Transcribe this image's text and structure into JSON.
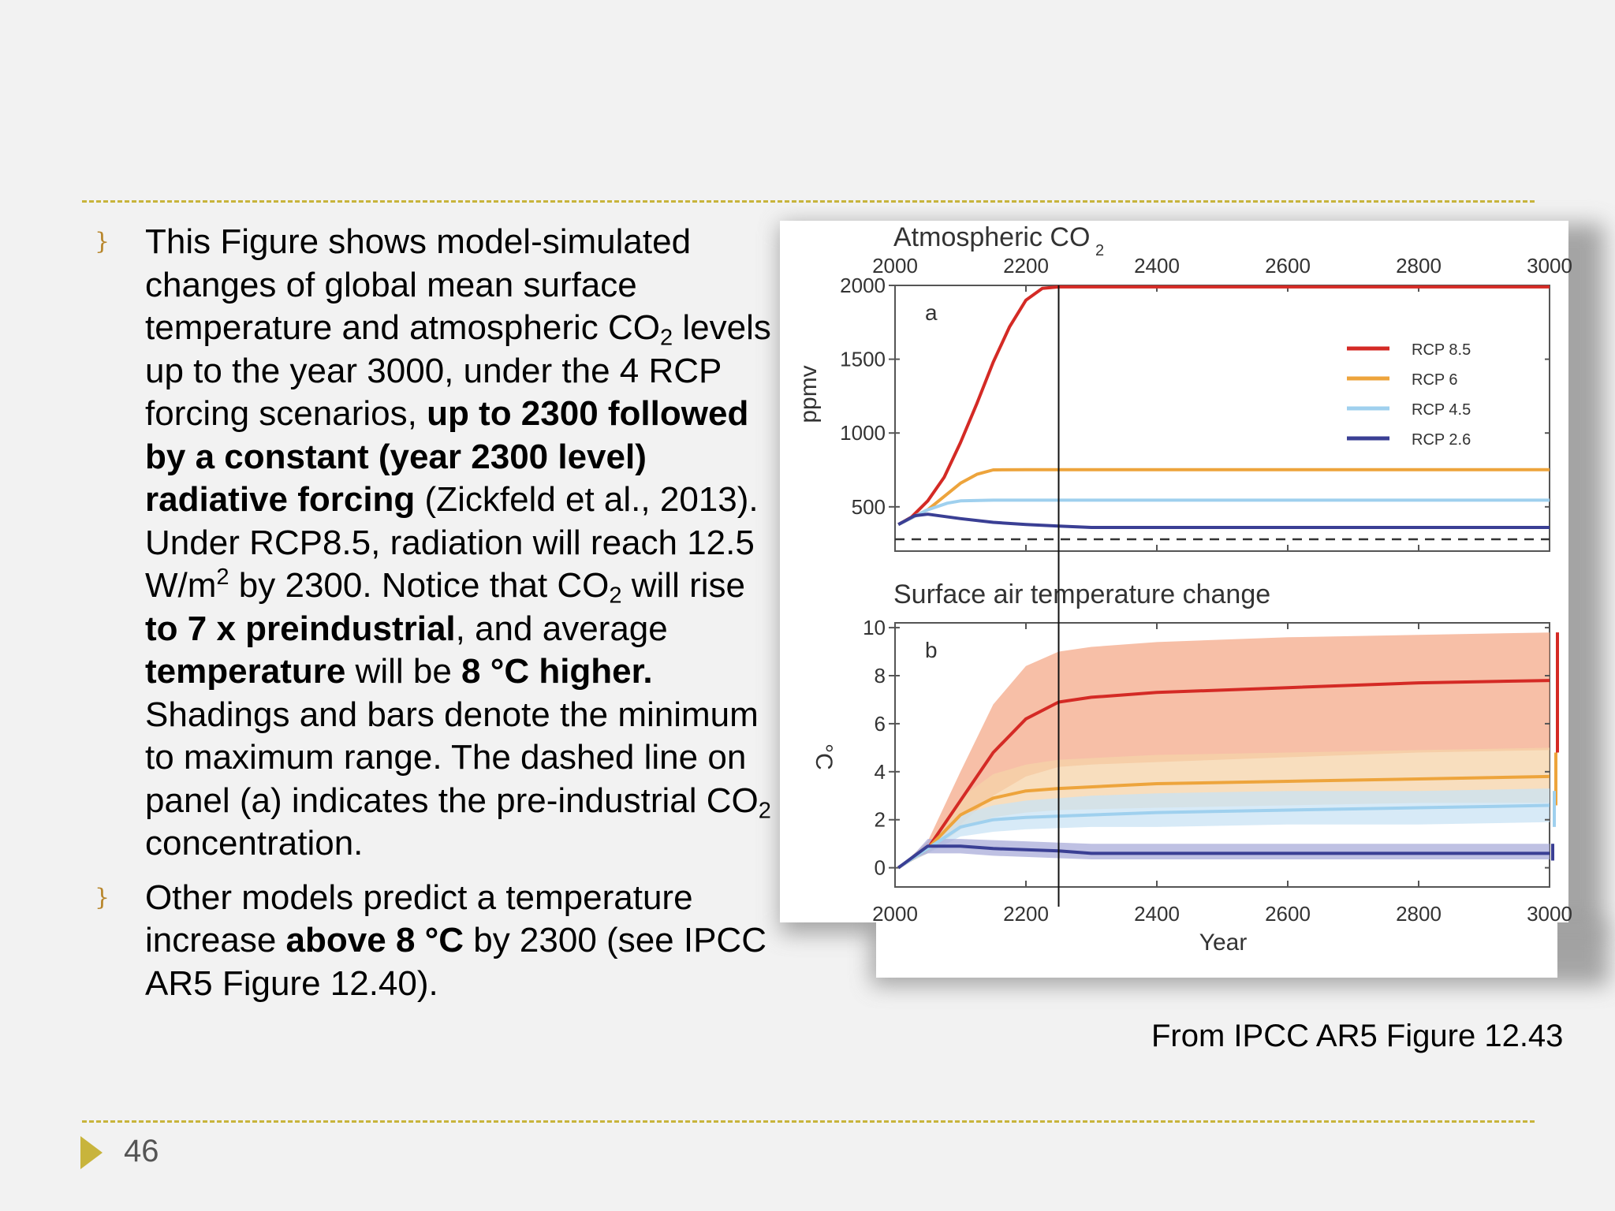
{
  "slide": {
    "page_number": "46",
    "caption": "From IPCC AR5 Figure 12.43",
    "bullets": [
      {
        "s1": "This Figure shows model-simulated changes of global mean surface temperature and atmospheric CO",
        "s2": "2",
        "s3": " levels up to the year 3000, under the 4 RCP forcing  scenarios, ",
        "s4": "up to 2300 followed by a constant (year 2300 level) radiative forcing",
        "s5": " (Zickfeld et al., 2013). Under RCP8.5, radiation will reach 12.5 W/m",
        "s6": "2",
        "s7": " by 2300. Notice that CO",
        "s8": "2",
        "s9": " will rise ",
        "s10": "to 7 x preindustrial",
        "s11": ", and average ",
        "s12": "temperature",
        "s13": "  will be ",
        "s14": "8 °C higher.",
        "s15": " Shadings and bars denote the minimum to maximum range. The dashed line on panel (a) indicates the pre-industrial CO",
        "s16": "2",
        "s17": " concentration."
      },
      {
        "s1": "Other models predict a temperature increase ",
        "s2": "above 8  °C",
        "s3": " by 2300 (see IPCC AR5 Figure 12.40)."
      }
    ]
  },
  "colors": {
    "accent": "#c8b43c",
    "bullet": "#b8862b",
    "rcp85": "#d42a25",
    "rcp6": "#eda43c",
    "rcp45": "#9fd0ee",
    "rcp26": "#3a3f94",
    "band85": "#f4a989",
    "band6": "#f6d3a8",
    "band45": "#c9e3f4",
    "band26": "#a9acd9"
  },
  "chart_data": [
    {
      "type": "line",
      "title": "Atmospheric CO",
      "title_sub": "2",
      "panel_label": "a",
      "ylabel": "ppmv",
      "xlim": [
        2000,
        3000
      ],
      "ylim": [
        200,
        2000
      ],
      "x_ticks": [
        2000,
        2200,
        2400,
        2600,
        2800,
        3000
      ],
      "x_tick_labels": [
        "2000",
        "2200",
        "2400",
        "2600",
        "2800",
        "3000"
      ],
      "y_ticks": [
        500,
        1000,
        1500,
        2000
      ],
      "y_tick_labels": [
        "500",
        "1000",
        "1500",
        "2000"
      ],
      "reference_line": {
        "x": 2250
      },
      "preindustrial_line": {
        "y": 280
      },
      "legend": {
        "position": "top-right",
        "entries": [
          "RCP 8.5",
          "RCP 6",
          "RCP 4.5",
          "RCP 2.6"
        ]
      },
      "series": [
        {
          "name": "RCP 8.5",
          "color_key": "rcp85",
          "x": [
            2005,
            2025,
            2050,
            2075,
            2100,
            2125,
            2150,
            2175,
            2200,
            2225,
            2250,
            2400,
            2600,
            2800,
            3000
          ],
          "y": [
            380,
            430,
            540,
            700,
            935,
            1200,
            1480,
            1720,
            1900,
            1980,
            1990,
            1990,
            1990,
            1990,
            1990
          ]
        },
        {
          "name": "RCP 6",
          "color_key": "rcp6",
          "x": [
            2005,
            2050,
            2100,
            2125,
            2150,
            2200,
            2250,
            3000
          ],
          "y": [
            380,
            480,
            660,
            720,
            750,
            752,
            752,
            752
          ]
        },
        {
          "name": "RCP 4.5",
          "color_key": "rcp45",
          "x": [
            2005,
            2050,
            2080,
            2100,
            2150,
            3000
          ],
          "y": [
            380,
            480,
            525,
            540,
            545,
            545
          ]
        },
        {
          "name": "RCP 2.6",
          "color_key": "rcp26",
          "x": [
            2005,
            2030,
            2050,
            2100,
            2150,
            2200,
            2250,
            2300,
            3000
          ],
          "y": [
            380,
            440,
            450,
            420,
            395,
            380,
            370,
            360,
            360
          ]
        }
      ]
    },
    {
      "type": "area",
      "title": "Surface air temperature change",
      "panel_label": "b",
      "xlabel": "Year",
      "ylabel": "°C",
      "xlim": [
        2000,
        3000
      ],
      "ylim": [
        -0.8,
        10.2
      ],
      "x_ticks": [
        2000,
        2200,
        2400,
        2600,
        2800,
        3000
      ],
      "x_tick_labels": [
        "2000",
        "2200",
        "2400",
        "2600",
        "2800",
        "3000"
      ],
      "y_ticks": [
        0,
        2,
        4,
        6,
        8,
        10
      ],
      "y_tick_labels": [
        "0",
        "2",
        "4",
        "6",
        "8",
        "10"
      ],
      "reference_line": {
        "x": 2250
      },
      "series": [
        {
          "name": "RCP 8.5",
          "color_key": "rcp85",
          "band_color_key": "band85",
          "x": [
            2005,
            2050,
            2100,
            2150,
            2200,
            2250,
            2300,
            2400,
            2600,
            2800,
            3000
          ],
          "y": [
            0.0,
            0.8,
            2.8,
            4.8,
            6.2,
            6.9,
            7.1,
            7.3,
            7.5,
            7.7,
            7.8
          ],
          "y_min": [
            0.0,
            0.6,
            1.8,
            3.0,
            3.8,
            4.2,
            4.3,
            4.4,
            4.6,
            4.8,
            4.9
          ],
          "y_max": [
            0.0,
            1.1,
            4.0,
            6.8,
            8.4,
            9.0,
            9.2,
            9.4,
            9.6,
            9.7,
            9.8
          ]
        },
        {
          "name": "RCP 6",
          "color_key": "rcp6",
          "band_color_key": "band6",
          "x": [
            2005,
            2050,
            2100,
            2150,
            2200,
            2250,
            2400,
            2600,
            2800,
            3000
          ],
          "y": [
            0.0,
            0.8,
            2.2,
            2.9,
            3.2,
            3.3,
            3.5,
            3.6,
            3.7,
            3.8
          ],
          "y_min": [
            0.0,
            0.6,
            1.6,
            2.1,
            2.3,
            2.4,
            2.5,
            2.6,
            2.7,
            2.7
          ],
          "y_max": [
            0.0,
            1.0,
            2.9,
            3.9,
            4.3,
            4.5,
            4.7,
            4.8,
            4.9,
            5.0
          ]
        },
        {
          "name": "RCP 4.5",
          "color_key": "rcp45",
          "band_color_key": "band45",
          "x": [
            2005,
            2050,
            2100,
            2150,
            2200,
            2300,
            2400,
            2600,
            2800,
            3000
          ],
          "y": [
            0.0,
            0.8,
            1.7,
            2.0,
            2.1,
            2.2,
            2.3,
            2.4,
            2.5,
            2.6
          ],
          "y_min": [
            0.0,
            0.6,
            1.3,
            1.5,
            1.6,
            1.7,
            1.7,
            1.8,
            1.8,
            1.9
          ],
          "y_max": [
            0.0,
            1.0,
            2.2,
            2.6,
            2.8,
            3.0,
            3.1,
            3.2,
            3.2,
            3.3
          ]
        },
        {
          "name": "RCP 2.6",
          "color_key": "rcp26",
          "band_color_key": "band26",
          "x": [
            2005,
            2030,
            2050,
            2100,
            2150,
            2200,
            2250,
            2300,
            2400,
            2600,
            2800,
            3000
          ],
          "y": [
            0.0,
            0.5,
            0.9,
            0.9,
            0.8,
            0.75,
            0.7,
            0.6,
            0.6,
            0.6,
            0.6,
            0.6
          ],
          "y_min": [
            0.0,
            0.4,
            0.6,
            0.6,
            0.5,
            0.45,
            0.4,
            0.35,
            0.35,
            0.35,
            0.35,
            0.35
          ],
          "y_max": [
            0.0,
            0.6,
            1.2,
            1.2,
            1.15,
            1.1,
            1.05,
            1.0,
            1.0,
            1.0,
            1.0,
            1.0
          ]
        }
      ],
      "range_bars": [
        {
          "name": "RCP 8.5",
          "color_key": "rcp85",
          "min": 4.8,
          "max": 9.8
        },
        {
          "name": "RCP 6",
          "color_key": "rcp6",
          "min": 2.6,
          "max": 4.8
        },
        {
          "name": "RCP 4.5",
          "color_key": "rcp45",
          "min": 1.7,
          "max": 3.2
        },
        {
          "name": "RCP 2.6",
          "color_key": "rcp26",
          "min": 0.3,
          "max": 1.0
        }
      ]
    }
  ]
}
